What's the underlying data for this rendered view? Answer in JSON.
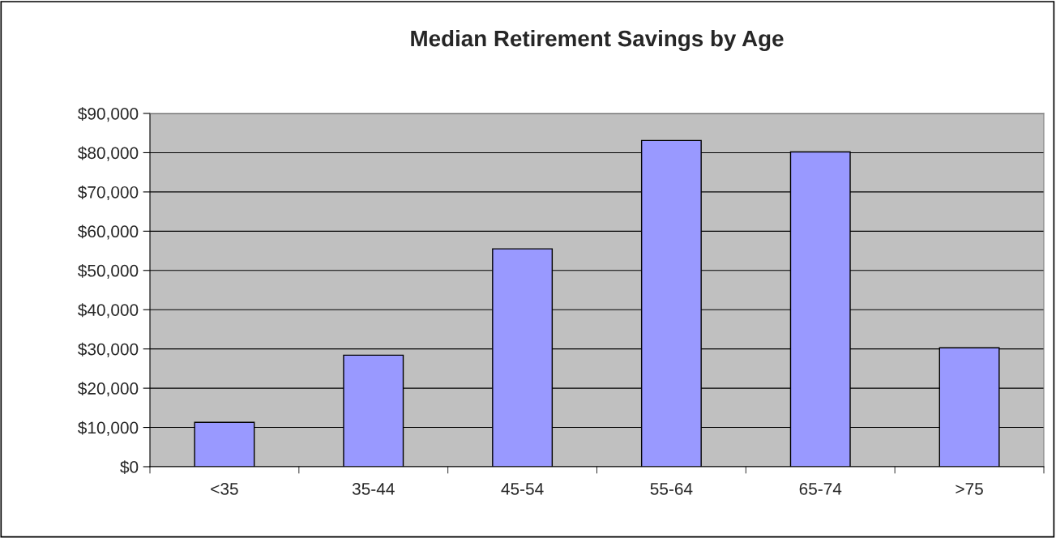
{
  "chart_data": {
    "type": "bar",
    "title": "Median Retirement Savings by Age",
    "categories": [
      "<35",
      "35-44",
      "45-54",
      "55-64",
      "65-74",
      ">75"
    ],
    "values": [
      11300,
      28400,
      55500,
      83100,
      80200,
      30300
    ],
    "color": "#9999ff",
    "ylim": [
      0,
      90000
    ],
    "yticks": [
      {
        "value": 0,
        "label": "$0"
      },
      {
        "value": 10000,
        "label": "$10,000"
      },
      {
        "value": 20000,
        "label": "$20,000"
      },
      {
        "value": 30000,
        "label": "$30,000"
      },
      {
        "value": 40000,
        "label": "$40,000"
      },
      {
        "value": 50000,
        "label": "$50,000"
      },
      {
        "value": 60000,
        "label": "$60,000"
      },
      {
        "value": 70000,
        "label": "$70,000"
      },
      {
        "value": 80000,
        "label": "$80,000"
      },
      {
        "value": 90000,
        "label": "$90,000"
      }
    ],
    "grid": "y"
  }
}
